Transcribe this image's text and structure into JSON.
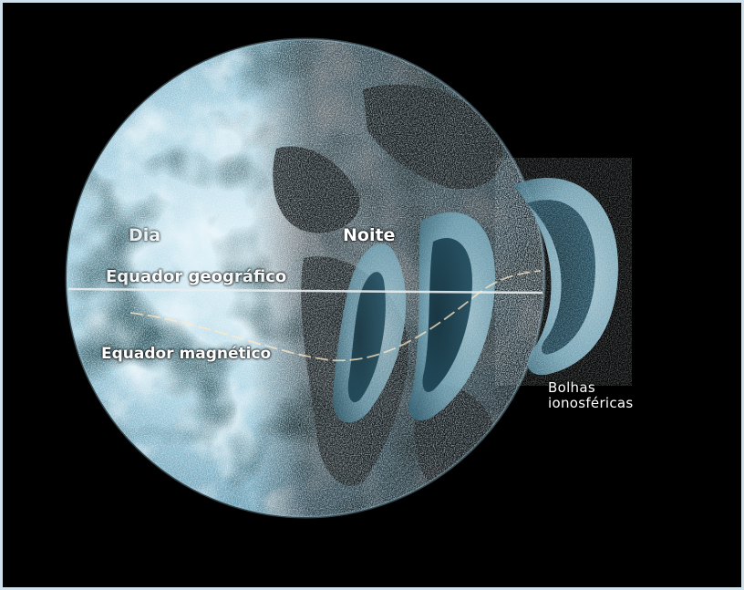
{
  "labels": {
    "dia": "Dia",
    "noite": "Noite",
    "equador_geografico": "Equador geográfico",
    "equador_magnetico": "Equador magnético",
    "bolhas_ionosfericas": "Bolhas\nionosféricas"
  },
  "colors": {
    "background": "#000000",
    "frame_border": "#cfe0ea",
    "day_side": "#b9dcea",
    "night_side": "#0b1a22",
    "bubble": "#8fc0d2",
    "equator_line": "#e9eef0",
    "label_text": "#ffffff"
  },
  "icons": [
    "earth-globe-icon"
  ]
}
